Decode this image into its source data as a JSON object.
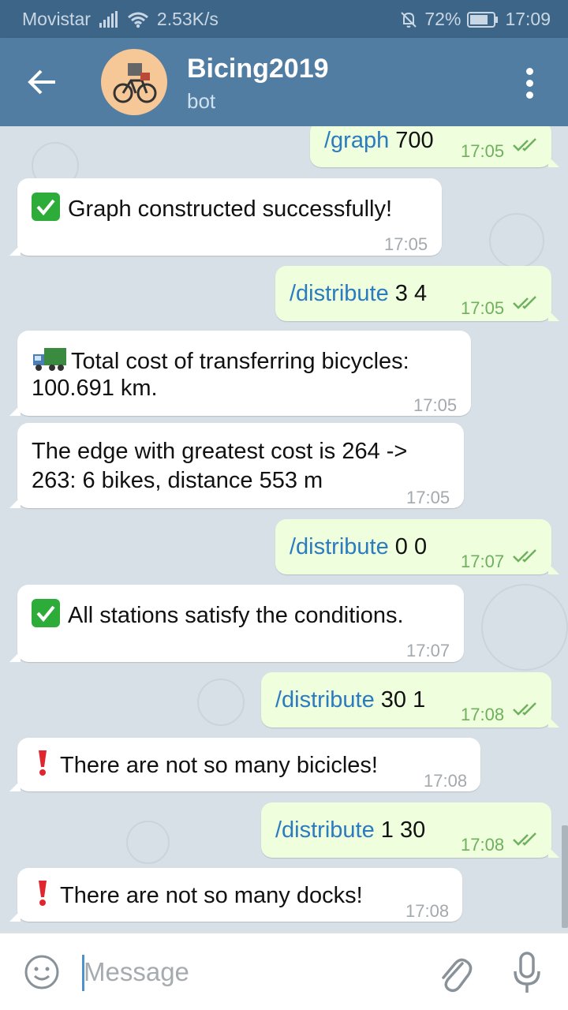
{
  "status": {
    "carrier": "Movistar",
    "speed": "2.53K/s",
    "battery": "72%",
    "time": "17:09"
  },
  "header": {
    "title": "Bicing2019",
    "subtitle": "bot",
    "back_icon": "arrow-left-icon",
    "menu_icon": "more-vertical-icon"
  },
  "messages": [
    {
      "dir": "out",
      "cmd": "/graph",
      "args": " 700",
      "time": "17:05"
    },
    {
      "dir": "in",
      "icon": "check-icon",
      "text": "Graph constructed successfully!",
      "time": "17:05"
    },
    {
      "dir": "out",
      "cmd": "/distribute",
      "args": " 3 4",
      "time": "17:05"
    },
    {
      "dir": "in",
      "icon": "truck-icon",
      "line1": "Total cost of transferring bicycles:",
      "line2": "100.691 km.",
      "time": "17:05"
    },
    {
      "dir": "in",
      "line1": "The edge with greatest cost is 264 ->",
      "line2": "263: 6 bikes, distance 553 m",
      "time": "17:05"
    },
    {
      "dir": "out",
      "cmd": "/distribute",
      "args": " 0 0",
      "time": "17:07"
    },
    {
      "dir": "in",
      "icon": "check-icon",
      "text": "All stations satisfy the conditions.",
      "time": "17:07"
    },
    {
      "dir": "out",
      "cmd": "/distribute",
      "args": " 30 1",
      "time": "17:08"
    },
    {
      "dir": "in",
      "icon": "exclamation-icon",
      "text": "There are not so many bicicles!",
      "time": "17:08"
    },
    {
      "dir": "out",
      "cmd": "/distribute",
      "args": " 1 30",
      "time": "17:08"
    },
    {
      "dir": "in",
      "icon": "exclamation-icon",
      "text": "There are not so many docks!",
      "time": "17:08"
    }
  ],
  "input": {
    "placeholder": "Message"
  },
  "colors": {
    "header": "#517da2",
    "status_bar": "#3d6587",
    "chat_bg": "#d7e0e7",
    "outgoing_bubble": "#effedd",
    "incoming_bubble": "#ffffff",
    "command_link": "#2b7bbf",
    "read_ticks": "#6fb05d"
  }
}
